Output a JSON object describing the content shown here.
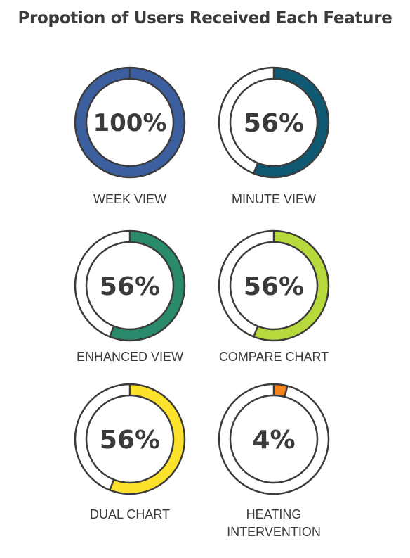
{
  "title": "Propotion of Users Received Each Feature",
  "chart_data": {
    "type": "donut",
    "title": "Propotion of Users Received Each Feature",
    "unit": "%",
    "items": [
      {
        "label": [
          "WEEK VIEW"
        ],
        "value": 100,
        "display": "100%",
        "color": "#3c5fa0"
      },
      {
        "label": [
          "MINUTE VIEW"
        ],
        "value": 56,
        "display": "56%",
        "color": "#0f5a72"
      },
      {
        "label": [
          "ENHANCED VIEW"
        ],
        "value": 56,
        "display": "56%",
        "color": "#2a8a6c"
      },
      {
        "label": [
          "COMPARE CHART"
        ],
        "value": 56,
        "display": "56%",
        "color": "#b7d93c"
      },
      {
        "label": [
          "DUAL CHART"
        ],
        "value": 56,
        "display": "56%",
        "color": "#fde22c"
      },
      {
        "label": [
          "HEATING",
          "INTERVENTION"
        ],
        "value": 4,
        "display": "4%",
        "color": "#f5841f"
      }
    ]
  }
}
